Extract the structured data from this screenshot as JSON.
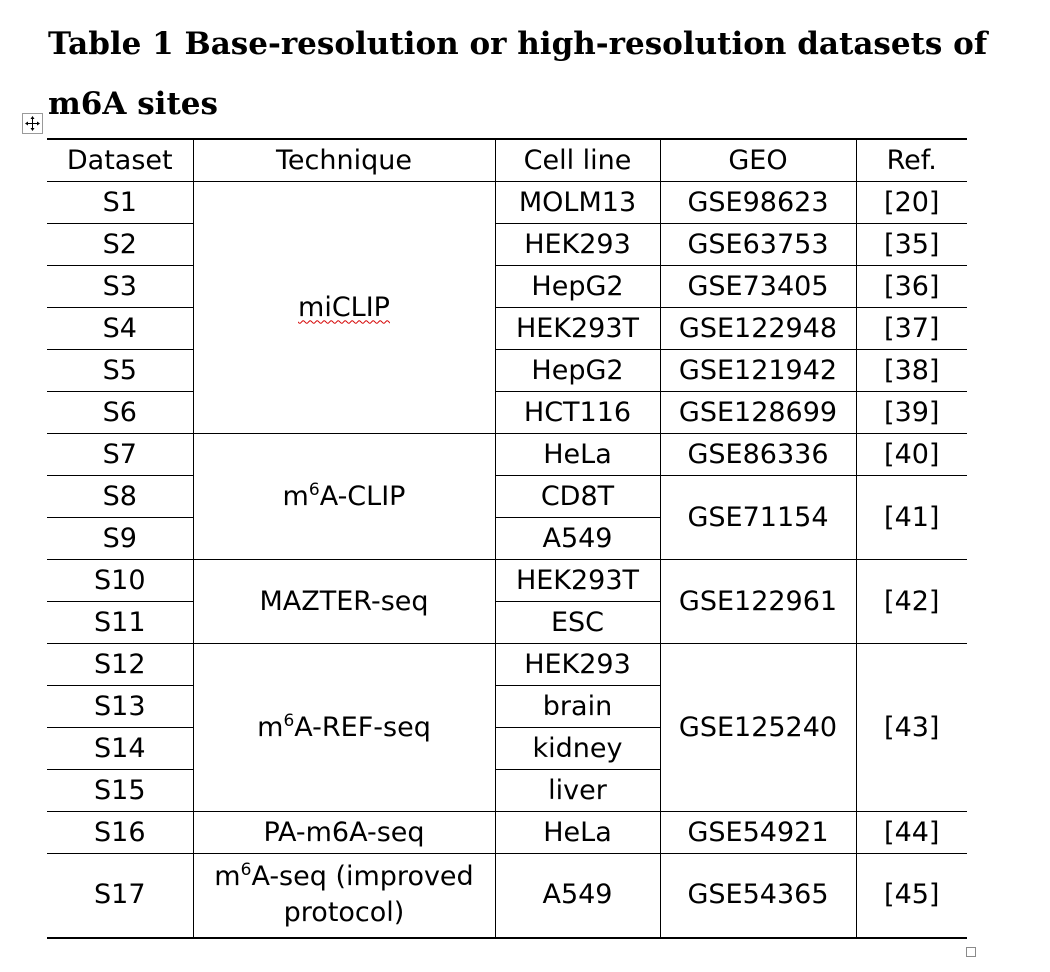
{
  "caption": {
    "line1": "Table 1 Base-resolution or high-resolution datasets of",
    "line2": "m6A sites"
  },
  "headers": {
    "dataset": "Dataset",
    "technique": "Technique",
    "cell_line": "Cell line",
    "geo": "GEO",
    "ref": "Ref."
  },
  "techniques": {
    "miclip": "miCLIP",
    "m6a_clip_pre": "m",
    "m6a_clip_sup": "6",
    "m6a_clip_post": "A-CLIP",
    "mazter": "MAZTER-seq",
    "m6a_ref_pre": "m",
    "m6a_ref_sup": "6",
    "m6a_ref_post": "A-REF-seq",
    "pa_m6a": "PA-m6A-seq",
    "m6a_seq_pre": "m",
    "m6a_seq_sup": "6",
    "m6a_seq_post": "A-seq (improved",
    "m6a_seq_line2": "protocol)"
  },
  "rows": [
    {
      "dataset": "S1",
      "cell_line": "MOLM13",
      "geo": "GSE98623",
      "ref": "[20]"
    },
    {
      "dataset": "S2",
      "cell_line": "HEK293",
      "geo": "GSE63753",
      "ref": "[35]"
    },
    {
      "dataset": "S3",
      "cell_line": "HepG2",
      "geo": "GSE73405",
      "ref": "[36]"
    },
    {
      "dataset": "S4",
      "cell_line": "HEK293T",
      "geo": "GSE122948",
      "ref": "[37]"
    },
    {
      "dataset": "S5",
      "cell_line": "HepG2",
      "geo": "GSE121942",
      "ref": "[38]"
    },
    {
      "dataset": "S6",
      "cell_line": "HCT116",
      "geo": "GSE128699",
      "ref": "[39]"
    },
    {
      "dataset": "S7",
      "cell_line": "HeLa",
      "geo": "GSE86336",
      "ref": "[40]"
    },
    {
      "dataset": "S8",
      "cell_line": "CD8T",
      "geo": "GSE71154",
      "ref": "[41]"
    },
    {
      "dataset": "S9",
      "cell_line": "A549"
    },
    {
      "dataset": "S10",
      "cell_line": "HEK293T",
      "geo": "GSE122961",
      "ref": "[42]"
    },
    {
      "dataset": "S11",
      "cell_line": "ESC"
    },
    {
      "dataset": "S12",
      "cell_line": "HEK293",
      "geo": "GSE125240",
      "ref": "[43]"
    },
    {
      "dataset": "S13",
      "cell_line": "brain"
    },
    {
      "dataset": "S14",
      "cell_line": "kidney"
    },
    {
      "dataset": "S15",
      "cell_line": "liver"
    },
    {
      "dataset": "S16",
      "cell_line": "HeLa",
      "geo": "GSE54921",
      "ref": "[44]"
    },
    {
      "dataset": "S17",
      "cell_line": "A549",
      "geo": "GSE54365",
      "ref": "[45]"
    }
  ]
}
